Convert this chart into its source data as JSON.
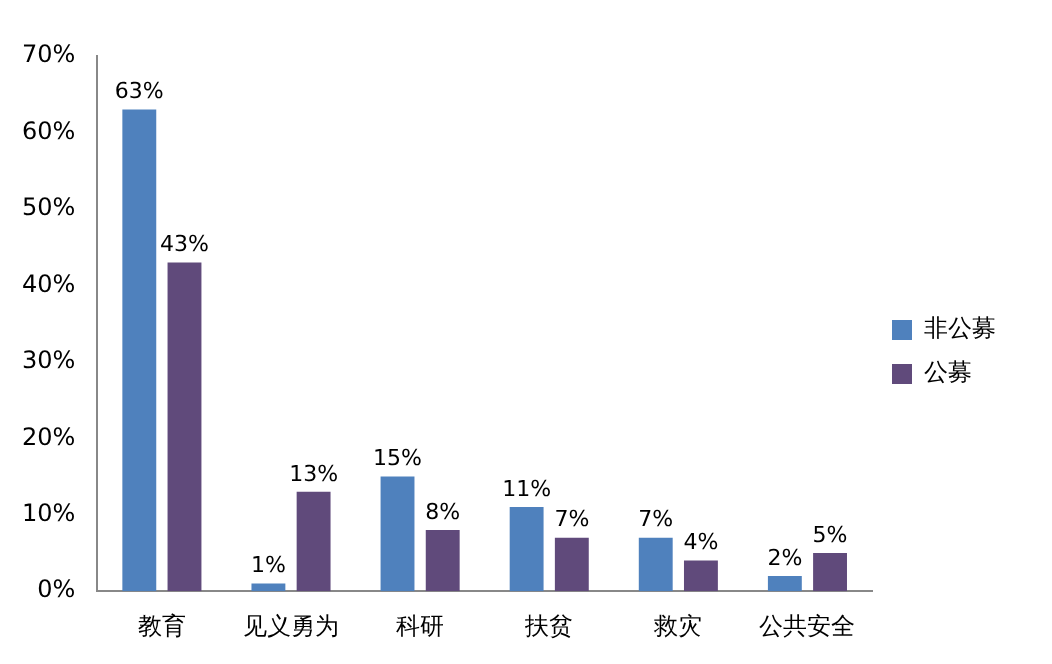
{
  "chart_data": {
    "type": "bar",
    "categories": [
      "教育",
      "见义勇为",
      "科研",
      "扶贫",
      "救灾",
      "公共安全"
    ],
    "series": [
      {
        "name": "非公募",
        "color": "#4f81bd",
        "values": [
          63,
          1,
          15,
          11,
          7,
          2
        ],
        "value_labels": [
          "63%",
          "1%",
          "15%",
          "11%",
          "7%",
          "2%"
        ]
      },
      {
        "name": "公募",
        "color": "#604a7b",
        "values": [
          43,
          13,
          8,
          7,
          4,
          5
        ],
        "value_labels": [
          "43%",
          "13%",
          "8%",
          "7%",
          "4%",
          "5%"
        ]
      }
    ],
    "ylim": [
      0,
      70
    ],
    "yticks": [
      {
        "value": 0,
        "label": "0%"
      },
      {
        "value": 10,
        "label": "10%"
      },
      {
        "value": 20,
        "label": "20%"
      },
      {
        "value": 30,
        "label": "30%"
      },
      {
        "value": 40,
        "label": "40%"
      },
      {
        "value": 50,
        "label": "50%"
      },
      {
        "value": 60,
        "label": "60%"
      },
      {
        "value": 70,
        "label": "70%"
      }
    ],
    "grid": false,
    "legend": "right"
  }
}
